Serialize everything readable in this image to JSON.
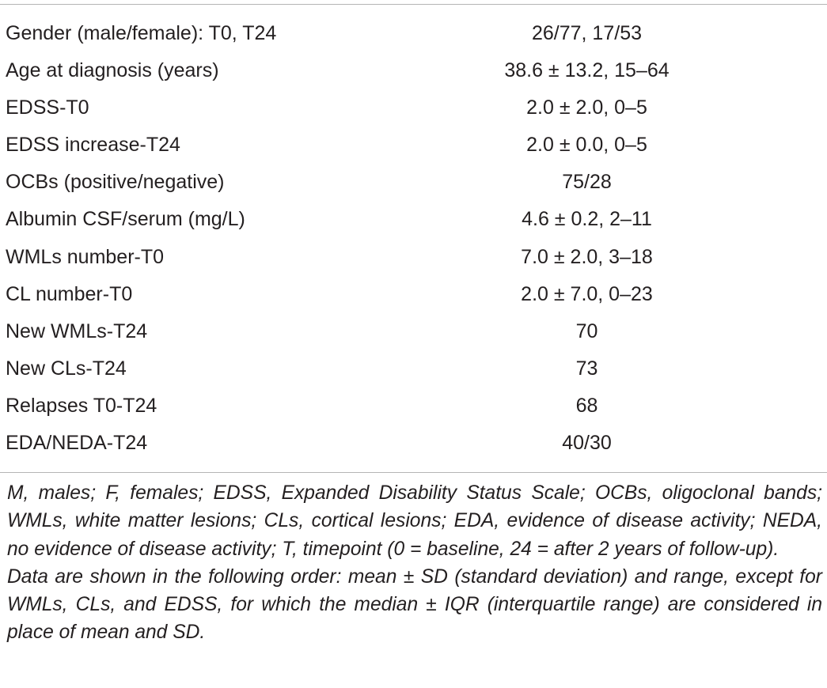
{
  "table": {
    "rows": [
      {
        "label": "Gender (male/female): T0, T24",
        "value": "26/77, 17/53"
      },
      {
        "label": "Age at diagnosis (years)",
        "value": "38.6 ± 13.2, 15–64"
      },
      {
        "label": "EDSS-T0",
        "value": "2.0 ± 2.0, 0–5"
      },
      {
        "label": "EDSS increase-T24",
        "value": "2.0 ± 0.0, 0–5"
      },
      {
        "label": "OCBs (positive/negative)",
        "value": "75/28"
      },
      {
        "label": "Albumin CSF/serum (mg/L)",
        "value": "4.6 ± 0.2, 2–11"
      },
      {
        "label": "WMLs number-T0",
        "value": "7.0 ± 2.0, 3–18"
      },
      {
        "label": "CL number-T0",
        "value": "2.0 ± 7.0, 0–23"
      },
      {
        "label": "New WMLs-T24",
        "value": "70"
      },
      {
        "label": "New CLs-T24",
        "value": "73"
      },
      {
        "label": "Relapses T0-T24",
        "value": "68"
      },
      {
        "label": "EDA/NEDA-T24",
        "value": "40/30"
      }
    ]
  },
  "footnotes": {
    "abbreviations": "M, males; F, females; EDSS, Expanded Disability Status Scale; OCBs, oligoclonal bands; WMLs, white matter lesions; CLs, cortical lesions; EDA, evidence of disease activity; NEDA, no evidence of disease activity; T, timepoint (0 = baseline, 24 = after 2 years of follow-up).",
    "data_order": "Data are shown in the following order: mean ± SD (standard deviation) and range, except for WMLs, CLs, and EDSS, for which the median ± IQR (interquartile range) are considered in place of mean and SD."
  }
}
